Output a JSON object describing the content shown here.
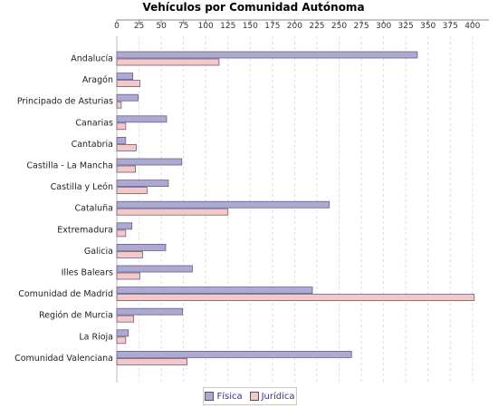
{
  "chart_data": {
    "type": "bar",
    "orientation": "horizontal",
    "title": "Vehículos por Comunidad Autónoma",
    "xlabel": "",
    "ylabel": "",
    "xlim": [
      0,
      410
    ],
    "xticks": [
      0,
      25,
      50,
      75,
      100,
      125,
      150,
      175,
      200,
      225,
      250,
      275,
      300,
      325,
      350,
      375,
      400
    ],
    "grid": true,
    "legend_position": "bottom",
    "categories": [
      "Andalucía",
      "Aragón",
      "Principado de Asturias",
      "Canarias",
      "Cantabria",
      "Castilla - La Mancha",
      "Castilla y León",
      "Cataluña",
      "Extremadura",
      "Galicia",
      "Illes Balears",
      "Comunidad de Madrid",
      "Región de Murcia",
      "La Rioja",
      "Comunidad Valenciana"
    ],
    "series": [
      {
        "name": "Física",
        "color": "#aaaad2",
        "values": [
          338,
          18,
          24,
          56,
          10,
          73,
          58,
          239,
          17,
          55,
          85,
          220,
          74,
          13,
          264
        ]
      },
      {
        "name": "Jurídica",
        "color": "#f5c8c8",
        "values": [
          115,
          26,
          5,
          10,
          22,
          21,
          34,
          125,
          10,
          29,
          26,
          402,
          19,
          10,
          79
        ]
      }
    ]
  }
}
